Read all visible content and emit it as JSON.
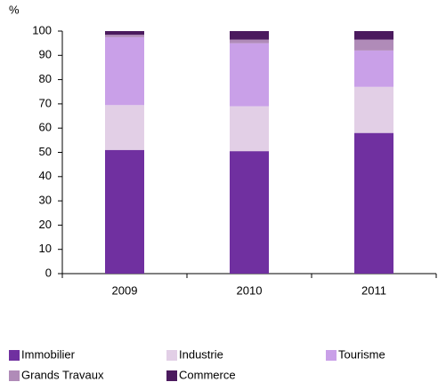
{
  "chart_data": {
    "type": "stacked_bar",
    "y_label": "%",
    "categories": [
      "2009",
      "2010",
      "2011"
    ],
    "series": [
      {
        "name": "Immobilier",
        "color": "#7030a0",
        "values": [
          51,
          50.5,
          58
        ]
      },
      {
        "name": "Industrie",
        "color": "#e2cfe6",
        "values": [
          18.5,
          18.5,
          19
        ]
      },
      {
        "name": "Tourisme",
        "color": "#c9a0e8",
        "values": [
          28,
          26,
          15
        ]
      },
      {
        "name": "Grands Travaux",
        "color": "#b08bb8",
        "values": [
          1,
          1.5,
          4.5
        ]
      },
      {
        "name": "Commerce",
        "color": "#4b1a5e",
        "values": [
          1.5,
          3.5,
          3.5
        ]
      }
    ],
    "ylim": [
      0,
      100
    ],
    "yticks": [
      0,
      10,
      20,
      30,
      40,
      50,
      60,
      70,
      80,
      90,
      100
    ],
    "grid": false
  }
}
